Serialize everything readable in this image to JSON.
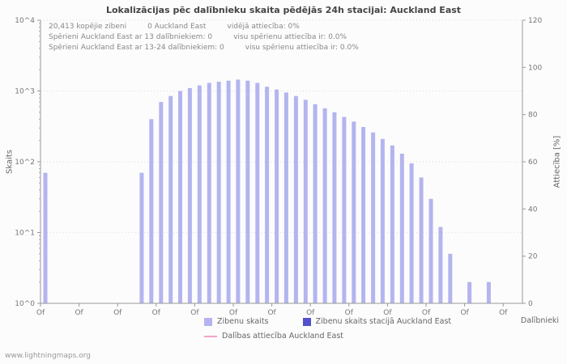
{
  "header": {
    "title": "Lokalizācijas pēc dalībnieku skaita pēdējās 24h stacijai: Auckland East"
  },
  "annotations": [
    [
      "20,413 kopējie zibeni",
      "0 Auckland East",
      "vidējā attiecība: 0%"
    ],
    [
      "Spērieni Auckland East ar 13 dalībniekiem: 0",
      "visu spērienu attiecība ir: 0.0%"
    ],
    [
      "Spērieni Auckland East ar 13-24 dalībniekiem: 0",
      "visu spērienu attiecība ir: 0.0%"
    ]
  ],
  "axes": {
    "left_label": "Skaits",
    "right_label": "Attiecība [%]",
    "x_label": "Dalībnieki"
  },
  "legend": [
    {
      "label": "Zibenu skaits",
      "swatch": "square",
      "color": "#b4b4f0"
    },
    {
      "label": "Zibenu skaits stacijā Auckland East",
      "swatch": "square",
      "color": "#5252cc"
    },
    {
      "label": "Dalības attiecība Auckland East",
      "swatch": "line",
      "color": "#f2a3c9"
    }
  ],
  "footer": {
    "watermark": "www.lightningmaps.org"
  },
  "chart_data": {
    "type": "bar",
    "title": "Lokalizācijas pēc dalībnieku skaita pēdējās 24h stacijai: Auckland East",
    "xlabel": "Dalībnieki",
    "ylabel": "Skaits",
    "ylabel_right": "Attiecība [%]",
    "yscale": "log",
    "ylim": [
      1,
      10000
    ],
    "ylim_right": [
      0,
      120
    ],
    "grid": "dotted-horizontal",
    "legend_position": "bottom",
    "left_tick_labels": [
      "10^0",
      "10^1",
      "10^2",
      "10^3",
      "10^4"
    ],
    "right_tick_values": [
      0,
      20,
      40,
      60,
      80,
      100,
      120
    ],
    "x_tick_label": "Of",
    "x_tick_every": 4,
    "series": [
      {
        "name": "Zibenu skaits",
        "color": "#b4b4f0",
        "values": [
          70,
          0,
          0,
          0,
          0,
          0,
          0,
          0,
          0,
          0,
          70,
          400,
          700,
          850,
          1000,
          1100,
          1200,
          1300,
          1350,
          1400,
          1450,
          1400,
          1300,
          1150,
          1050,
          950,
          850,
          750,
          650,
          570,
          500,
          430,
          370,
          310,
          260,
          210,
          170,
          130,
          95,
          60,
          30,
          12,
          5,
          0,
          2,
          0,
          2,
          0,
          0,
          0
        ]
      },
      {
        "name": "Zibenu skaits stacijā Auckland East",
        "color": "#5252cc",
        "values": []
      },
      {
        "name": "Dalības attiecība Auckland East",
        "type": "line",
        "axis": "right",
        "color": "#f2a3c9",
        "values": []
      }
    ]
  }
}
